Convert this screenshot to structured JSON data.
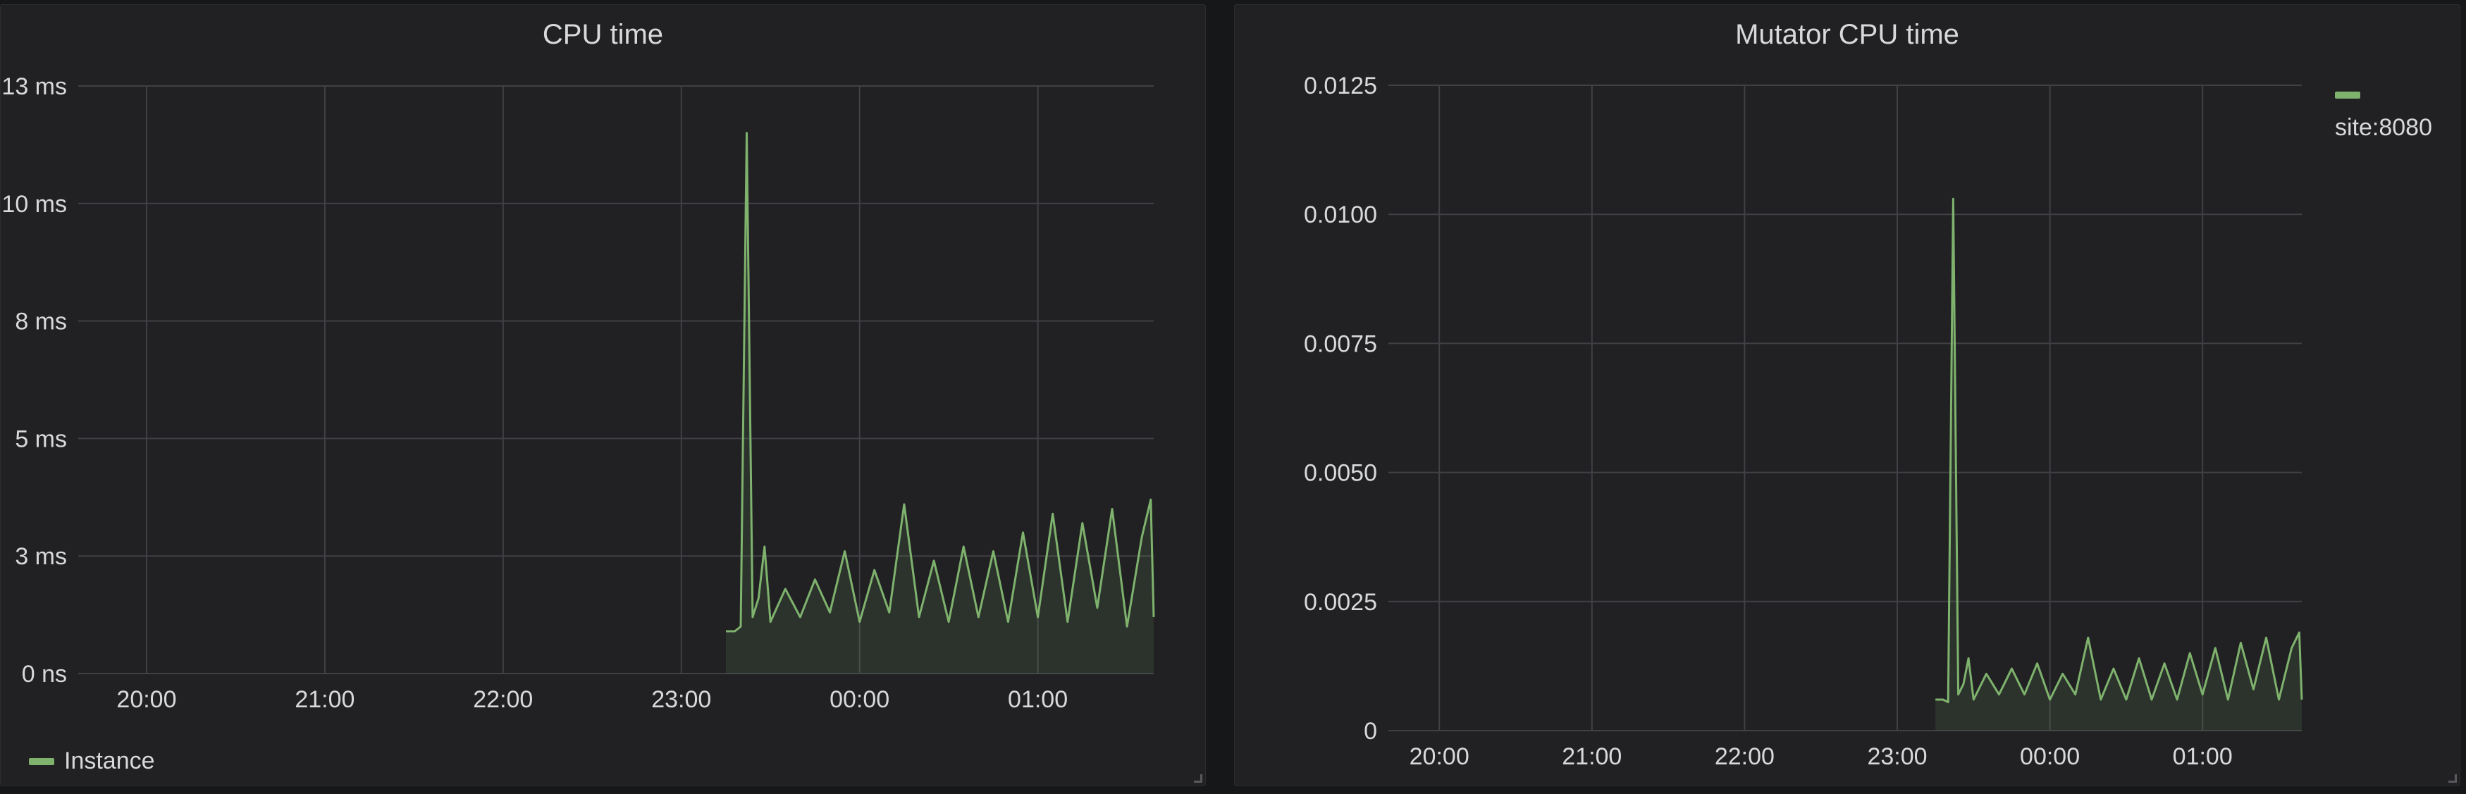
{
  "panels": [
    {
      "title": "CPU time",
      "legend": "Instance"
    },
    {
      "title": "Mutator CPU time",
      "legend": "site:8080"
    }
  ],
  "colors": {
    "series": "#7eb26d",
    "panel_bg": "#212124",
    "grid": "#404045",
    "text": "#d8d9da"
  },
  "chart_data": [
    {
      "type": "area",
      "title": "CPU time",
      "x_ticks": [
        "20:00",
        "21:00",
        "22:00",
        "23:00",
        "00:00",
        "01:00"
      ],
      "x_range": [
        "19:37",
        "01:39"
      ],
      "y_ticks": [
        "0 ns",
        "3 ms",
        "5 ms",
        "8 ms",
        "10 ms",
        "13 ms"
      ],
      "ylim_ms": [
        0,
        12.5
      ],
      "legend_position": "bottom-left",
      "grid": true,
      "series": [
        {
          "name": "Instance",
          "color": "#7eb26d",
          "x": [
            "23:15",
            "23:18",
            "23:20",
            "23:22",
            "23:24",
            "23:26",
            "23:28",
            "23:30",
            "23:35",
            "23:40",
            "23:45",
            "23:50",
            "23:55",
            "00:00",
            "00:05",
            "00:10",
            "00:15",
            "00:20",
            "00:25",
            "00:30",
            "00:35",
            "00:40",
            "00:45",
            "00:50",
            "00:55",
            "01:00",
            "01:05",
            "01:10",
            "01:15",
            "01:20",
            "01:25",
            "01:30",
            "01:35",
            "01:38",
            "01:39"
          ],
          "values": [
            0.9,
            0.9,
            1.0,
            11.5,
            1.2,
            1.6,
            2.7,
            1.1,
            1.8,
            1.2,
            2.0,
            1.3,
            2.6,
            1.1,
            2.2,
            1.3,
            3.6,
            1.2,
            2.4,
            1.1,
            2.7,
            1.2,
            2.6,
            1.1,
            3.0,
            1.2,
            3.4,
            1.1,
            3.2,
            1.4,
            3.5,
            1.0,
            2.9,
            3.7,
            1.2
          ]
        }
      ]
    },
    {
      "type": "area",
      "title": "Mutator CPU time",
      "x_ticks": [
        "20:00",
        "21:00",
        "22:00",
        "23:00",
        "00:00",
        "01:00"
      ],
      "x_range": [
        "19:40",
        "01:39"
      ],
      "y_ticks": [
        "0",
        "0.0025",
        "0.0050",
        "0.0075",
        "0.0100",
        "0.0125"
      ],
      "ylim": [
        0,
        0.0125
      ],
      "legend_position": "right",
      "grid": true,
      "series": [
        {
          "name": "site:8080",
          "color": "#7eb26d",
          "x": [
            "23:15",
            "23:18",
            "23:20",
            "23:22",
            "23:24",
            "23:26",
            "23:28",
            "23:30",
            "23:35",
            "23:40",
            "23:45",
            "23:50",
            "23:55",
            "00:00",
            "00:05",
            "00:10",
            "00:15",
            "00:20",
            "00:25",
            "00:30",
            "00:35",
            "00:40",
            "00:45",
            "00:50",
            "00:55",
            "01:00",
            "01:05",
            "01:10",
            "01:15",
            "01:20",
            "01:25",
            "01:30",
            "01:35",
            "01:38",
            "01:39"
          ],
          "values": [
            0.0006,
            0.0006,
            0.00055,
            0.0103,
            0.0007,
            0.0009,
            0.0014,
            0.0006,
            0.0011,
            0.0007,
            0.0012,
            0.0007,
            0.0013,
            0.0006,
            0.0011,
            0.0007,
            0.0018,
            0.0006,
            0.0012,
            0.0006,
            0.0014,
            0.0006,
            0.0013,
            0.0006,
            0.0015,
            0.0007,
            0.0016,
            0.0006,
            0.0017,
            0.0008,
            0.0018,
            0.0006,
            0.0016,
            0.0019,
            0.0006
          ]
        }
      ]
    }
  ]
}
